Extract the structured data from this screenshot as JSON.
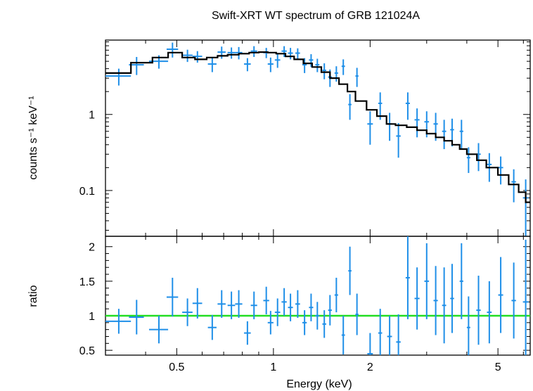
{
  "chart_data": [
    {
      "type": "scatter",
      "title": "Swift-XRT WT spectrum of GRB 121024A",
      "xlabel": "",
      "ylabel": "counts s⁻¹ keV⁻¹",
      "xscale": "log",
      "yscale": "log",
      "xlim": [
        0.3,
        6.3
      ],
      "ylim": [
        0.025,
        9.5
      ],
      "x_ticks": [
        0.5,
        1,
        2,
        5
      ],
      "y_ticks": [
        0.1,
        1
      ],
      "y_tick_labels": [
        "0.1",
        "1"
      ],
      "series": [
        {
          "role": "data",
          "color": "#1f8fe8",
          "points": [
            [
              0.33,
              3.2,
              0.03,
              0.8
            ],
            [
              0.375,
              4.5,
              0.02,
              1.2
            ],
            [
              0.44,
              5.0,
              0.03,
              1.0
            ],
            [
              0.485,
              7.2,
              0.02,
              1.6
            ],
            [
              0.54,
              6.0,
              0.02,
              1.1
            ],
            [
              0.58,
              5.8,
              0.02,
              1.0
            ],
            [
              0.645,
              4.6,
              0.02,
              1.0
            ],
            [
              0.69,
              6.6,
              0.02,
              1.2
            ],
            [
              0.74,
              6.5,
              0.02,
              1.1
            ],
            [
              0.78,
              6.5,
              0.02,
              1.2
            ],
            [
              0.83,
              4.6,
              0.02,
              0.9
            ],
            [
              0.87,
              6.8,
              0.02,
              1.1
            ],
            [
              0.95,
              6.5,
              0.02,
              1.0
            ],
            [
              0.98,
              4.6,
              0.02,
              1.0
            ],
            [
              1.03,
              5.2,
              0.02,
              1.1
            ],
            [
              1.08,
              6.8,
              0.02,
              1.1
            ],
            [
              1.13,
              6.4,
              0.02,
              1.1
            ],
            [
              1.19,
              6.4,
              0.02,
              1.0
            ],
            [
              1.25,
              4.5,
              0.02,
              1.0
            ],
            [
              1.31,
              5.2,
              0.02,
              1.0
            ],
            [
              1.37,
              4.5,
              0.02,
              0.9
            ],
            [
              1.44,
              3.8,
              0.02,
              0.9
            ],
            [
              1.5,
              3.1,
              0.02,
              0.8
            ],
            [
              1.57,
              3.5,
              0.02,
              0.8
            ],
            [
              1.65,
              4.3,
              0.02,
              1.0
            ],
            [
              1.73,
              1.35,
              0.02,
              0.5
            ],
            [
              1.82,
              3.2,
              0.02,
              0.9
            ],
            [
              2.0,
              0.75,
              0.04,
              0.35
            ],
            [
              2.15,
              1.4,
              0.03,
              0.55
            ],
            [
              2.3,
              0.75,
              0.04,
              0.3
            ],
            [
              2.45,
              0.52,
              0.04,
              0.25
            ],
            [
              2.62,
              1.4,
              0.04,
              0.55
            ],
            [
              2.8,
              0.85,
              0.05,
              0.35
            ],
            [
              3.0,
              0.8,
              0.05,
              0.3
            ],
            [
              3.2,
              0.75,
              0.05,
              0.3
            ],
            [
              3.4,
              0.6,
              0.05,
              0.25
            ],
            [
              3.6,
              0.63,
              0.05,
              0.25
            ],
            [
              3.85,
              0.6,
              0.05,
              0.25
            ],
            [
              4.05,
              0.27,
              0.05,
              0.1
            ],
            [
              4.35,
              0.3,
              0.07,
              0.12
            ],
            [
              4.7,
              0.22,
              0.08,
              0.09
            ],
            [
              5.1,
              0.2,
              0.09,
              0.08
            ],
            [
              5.6,
              0.13,
              0.09,
              0.06
            ],
            [
              6.1,
              0.08,
              0.12,
              0.06
            ]
          ]
        },
        {
          "role": "model",
          "color": "#000000",
          "steps": [
            [
              0.3,
              3.5
            ],
            [
              0.36,
              4.8
            ],
            [
              0.42,
              5.6
            ],
            [
              0.47,
              6.5
            ],
            [
              0.52,
              5.6
            ],
            [
              0.57,
              5.3
            ],
            [
              0.62,
              5.6
            ],
            [
              0.67,
              5.9
            ],
            [
              0.72,
              6.1
            ],
            [
              0.78,
              6.3
            ],
            [
              0.84,
              6.5
            ],
            [
              0.9,
              6.6
            ],
            [
              0.96,
              6.5
            ],
            [
              1.02,
              6.3
            ],
            [
              1.09,
              5.8
            ],
            [
              1.16,
              5.3
            ],
            [
              1.24,
              4.7
            ],
            [
              1.32,
              4.2
            ],
            [
              1.41,
              3.6
            ],
            [
              1.5,
              3.0
            ],
            [
              1.6,
              2.5
            ],
            [
              1.7,
              2.0
            ],
            [
              1.8,
              1.5
            ],
            [
              1.95,
              1.15
            ],
            [
              2.1,
              0.95
            ],
            [
              2.25,
              0.75
            ],
            [
              2.4,
              0.72
            ],
            [
              2.6,
              0.68
            ],
            [
              2.8,
              0.62
            ],
            [
              3.0,
              0.56
            ],
            [
              3.2,
              0.5
            ],
            [
              3.4,
              0.45
            ],
            [
              3.6,
              0.4
            ],
            [
              3.8,
              0.35
            ],
            [
              4.0,
              0.3
            ],
            [
              4.3,
              0.25
            ],
            [
              4.6,
              0.2
            ],
            [
              5.0,
              0.16
            ],
            [
              5.4,
              0.12
            ],
            [
              5.8,
              0.095
            ],
            [
              6.1,
              0.07
            ]
          ],
          "x_end": 6.3
        }
      ]
    },
    {
      "type": "scatter",
      "title": "",
      "xlabel": "Energy (keV)",
      "ylabel": "ratio",
      "xscale": "log",
      "yscale": "linear",
      "xlim": [
        0.3,
        6.3
      ],
      "ylim": [
        0.43,
        2.15
      ],
      "x_ticks": [
        0.5,
        1,
        2,
        5
      ],
      "x_tick_labels": [
        "0.5",
        "1",
        "2",
        "5"
      ],
      "y_ticks": [
        0.5,
        1,
        1.5,
        2
      ],
      "y_tick_labels": [
        "0.5",
        "1",
        "1.5",
        "2"
      ],
      "reference_line": {
        "y": 1,
        "color": "#22dd22"
      },
      "series": [
        {
          "role": "data",
          "color": "#1f8fe8",
          "points": [
            [
              0.33,
              0.92,
              0.03,
              0.18
            ],
            [
              0.375,
              0.98,
              0.02,
              0.25
            ],
            [
              0.44,
              0.8,
              0.03,
              0.2
            ],
            [
              0.485,
              1.27,
              0.02,
              0.28
            ],
            [
              0.54,
              1.05,
              0.02,
              0.2
            ],
            [
              0.58,
              1.18,
              0.02,
              0.22
            ],
            [
              0.645,
              0.83,
              0.02,
              0.18
            ],
            [
              0.69,
              1.17,
              0.02,
              0.2
            ],
            [
              0.74,
              1.15,
              0.02,
              0.2
            ],
            [
              0.78,
              1.17,
              0.02,
              0.2
            ],
            [
              0.83,
              0.75,
              0.02,
              0.17
            ],
            [
              0.87,
              1.15,
              0.02,
              0.2
            ],
            [
              0.95,
              1.22,
              0.02,
              0.2
            ],
            [
              0.98,
              0.9,
              0.02,
              0.17
            ],
            [
              1.03,
              1.05,
              0.02,
              0.2
            ],
            [
              1.08,
              1.2,
              0.02,
              0.2
            ],
            [
              1.13,
              1.12,
              0.02,
              0.2
            ],
            [
              1.19,
              1.17,
              0.02,
              0.2
            ],
            [
              1.25,
              0.9,
              0.02,
              0.18
            ],
            [
              1.31,
              1.12,
              0.02,
              0.2
            ],
            [
              1.37,
              1.0,
              0.02,
              0.2
            ],
            [
              1.44,
              0.88,
              0.02,
              0.2
            ],
            [
              1.5,
              1.08,
              0.02,
              0.22
            ],
            [
              1.57,
              1.3,
              0.02,
              0.25
            ],
            [
              1.65,
              0.72,
              0.02,
              0.28
            ],
            [
              1.73,
              1.65,
              0.02,
              0.35
            ],
            [
              1.82,
              1.02,
              0.02,
              0.3
            ],
            [
              2.0,
              0.45,
              0.04,
              0.3
            ],
            [
              2.15,
              0.75,
              0.03,
              0.35
            ],
            [
              2.3,
              0.7,
              0.04,
              0.3
            ],
            [
              2.45,
              0.62,
              0.04,
              0.4
            ],
            [
              2.62,
              1.55,
              0.04,
              0.6
            ],
            [
              2.8,
              1.25,
              0.05,
              0.45
            ],
            [
              3.0,
              1.5,
              0.05,
              0.55
            ],
            [
              3.2,
              1.22,
              0.05,
              0.5
            ],
            [
              3.4,
              1.15,
              0.05,
              0.55
            ],
            [
              3.6,
              1.25,
              0.05,
              0.5
            ],
            [
              3.85,
              1.5,
              0.05,
              0.55
            ],
            [
              4.05,
              0.83,
              0.05,
              0.45
            ],
            [
              4.35,
              1.08,
              0.07,
              0.5
            ],
            [
              4.7,
              1.05,
              0.08,
              0.45
            ],
            [
              5.1,
              1.3,
              0.09,
              0.55
            ],
            [
              5.6,
              1.22,
              0.09,
              0.55
            ],
            [
              6.1,
              1.2,
              0.12,
              0.9
            ]
          ]
        }
      ]
    }
  ]
}
